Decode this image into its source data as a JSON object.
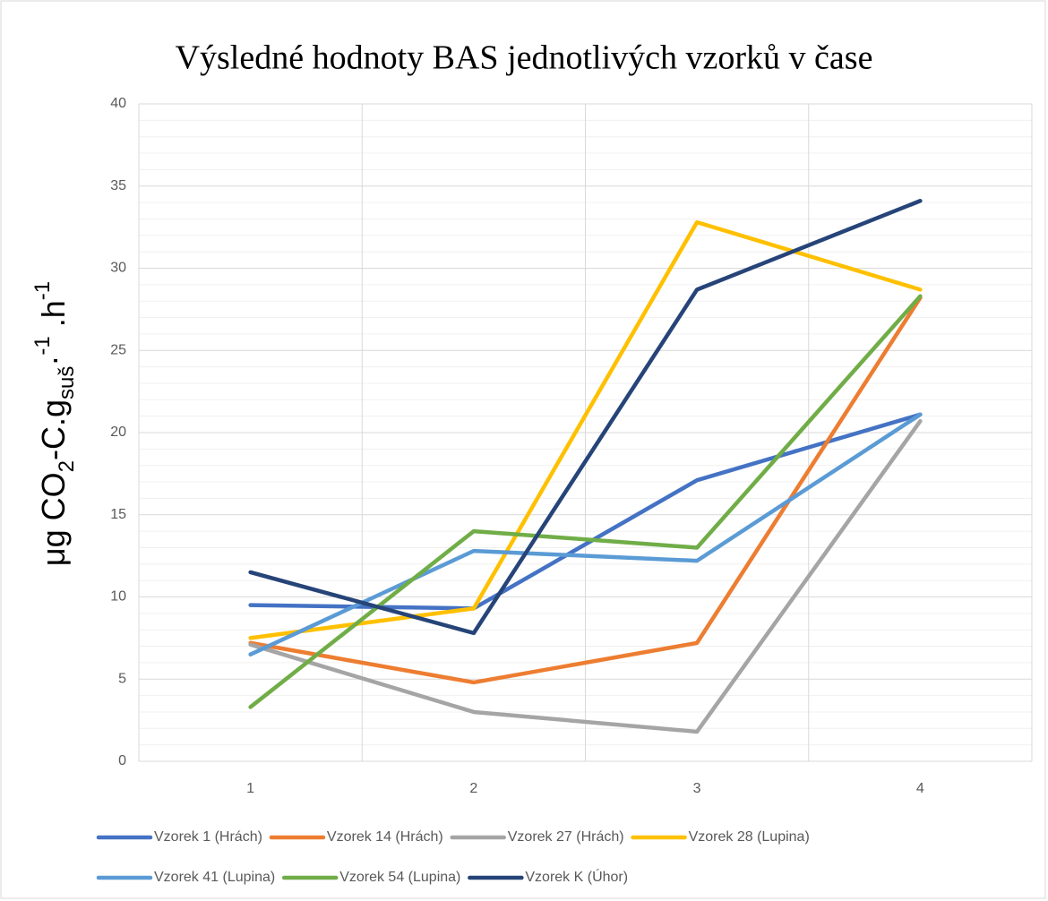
{
  "chart_data": {
    "type": "line",
    "title": "Výsledné hodnoty BAS jednotlivých vzorků v čase",
    "y_label": [
      "μg CO",
      "2",
      "-C.g",
      "suš",
      "·",
      "-1",
      " .h",
      "-1"
    ],
    "categories": [
      "1",
      "2",
      "3",
      "4"
    ],
    "series": [
      {
        "name": "Vzorek 1 (Hrách)",
        "color": "#4472c4",
        "values": [
          9.5,
          9.3,
          17.1,
          21.1
        ]
      },
      {
        "name": "Vzorek 14 (Hrách)",
        "color": "#ed7d31",
        "values": [
          7.2,
          4.8,
          7.2,
          28.2
        ]
      },
      {
        "name": "Vzorek 27 (Hrách)",
        "color": "#a5a5a5",
        "values": [
          7.1,
          3.0,
          1.8,
          20.7
        ]
      },
      {
        "name": "Vzorek 28 (Lupina)",
        "color": "#ffc000",
        "values": [
          7.5,
          9.3,
          32.8,
          28.7
        ]
      },
      {
        "name": "Vzorek 41 (Lupina)",
        "color": "#5b9bd5",
        "values": [
          6.5,
          12.8,
          12.2,
          21.1
        ]
      },
      {
        "name": "Vzorek 54 (Lupina)",
        "color": "#70ad47",
        "values": [
          3.3,
          14.0,
          13.0,
          28.3
        ]
      },
      {
        "name": "Vzorek K (Úhor)",
        "color": "#264478",
        "values": [
          11.5,
          7.8,
          28.7,
          34.1
        ]
      }
    ],
    "ylim": [
      0,
      40
    ],
    "yticks": [
      0,
      5,
      10,
      15,
      20,
      25,
      30,
      35,
      40
    ],
    "yminor_ticks": [
      1,
      2,
      3,
      4,
      6,
      7,
      8,
      9,
      11,
      12,
      13,
      14,
      16,
      17,
      18,
      19,
      21,
      22,
      23,
      24,
      26,
      27,
      28,
      29,
      31,
      32,
      33,
      34,
      36,
      37,
      38,
      39
    ],
    "grid": true,
    "legend": "bottom"
  }
}
